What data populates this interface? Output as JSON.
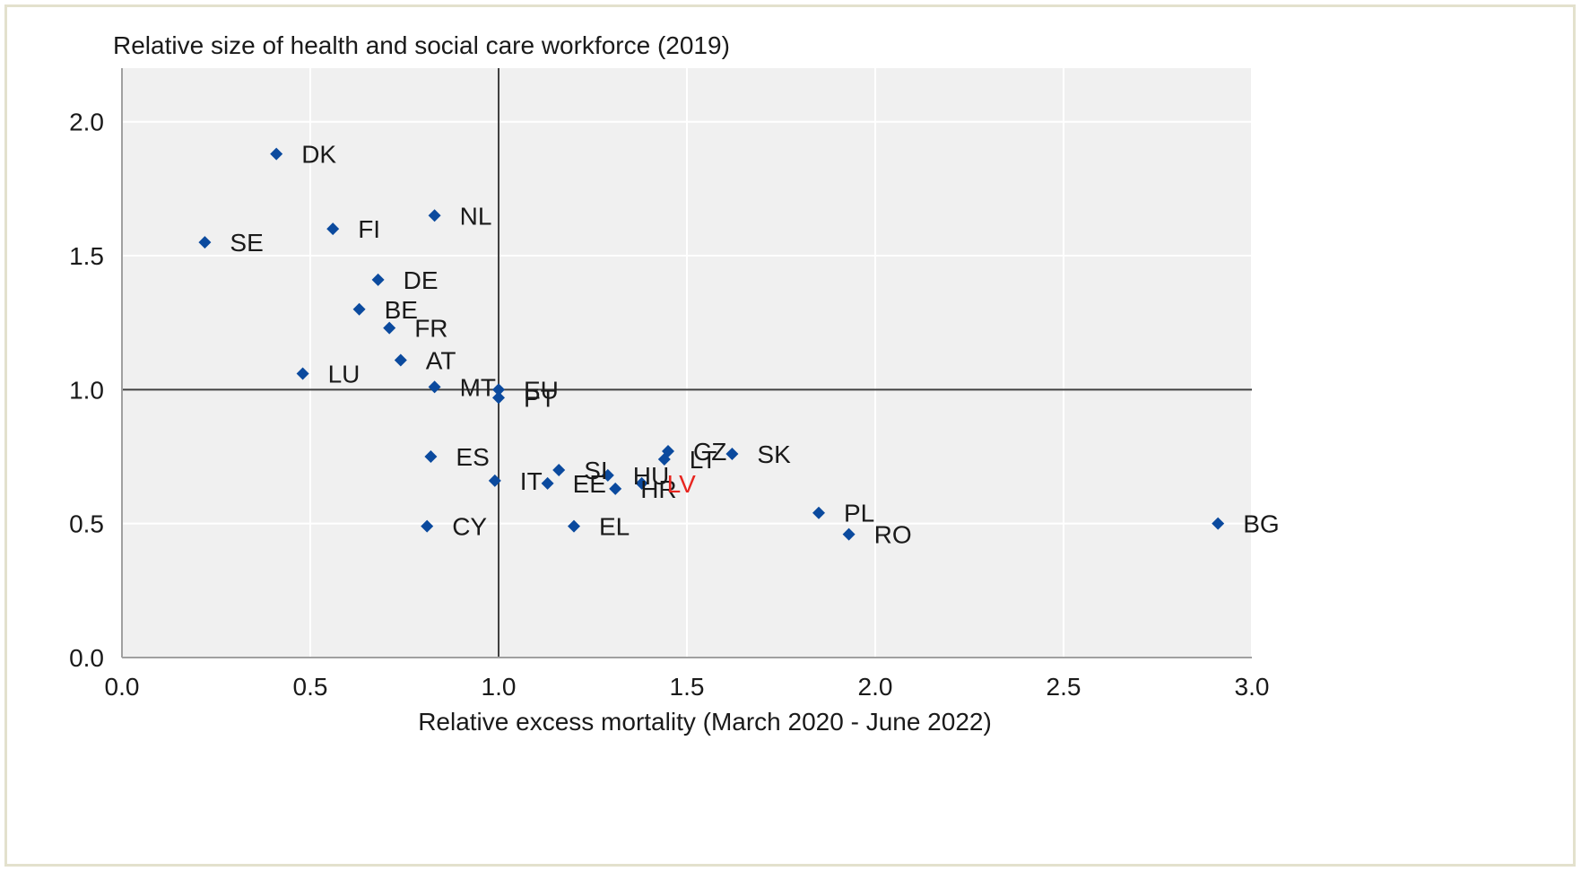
{
  "chart_data": {
    "type": "scatter",
    "ylabel": "Relative size of health and social care workforce (2019)",
    "xlabel": "Relative excess mortality (March 2020 - June 2022)",
    "xlim": [
      0,
      3
    ],
    "ylim": [
      0,
      2.2
    ],
    "xticks": [
      "0.0",
      "0.5",
      "1.0",
      "1.5",
      "2.0",
      "2.5",
      "3.0"
    ],
    "yticks": [
      "0.0",
      "0.5",
      "1.0",
      "1.5",
      "2.0"
    ],
    "grid": true,
    "reference_lines": {
      "x": 1.0,
      "y": 1.0
    },
    "marker_color": "#0b4a9e",
    "highlight_color": "#e8251f",
    "highlight_label": "LV",
    "points": [
      {
        "label": "DK",
        "x": 0.41,
        "y": 1.88
      },
      {
        "label": "NL",
        "x": 0.83,
        "y": 1.65
      },
      {
        "label": "FI",
        "x": 0.56,
        "y": 1.6
      },
      {
        "label": "SE",
        "x": 0.22,
        "y": 1.55
      },
      {
        "label": "DE",
        "x": 0.68,
        "y": 1.41
      },
      {
        "label": "BE",
        "x": 0.63,
        "y": 1.3
      },
      {
        "label": "FR",
        "x": 0.71,
        "y": 1.23
      },
      {
        "label": "AT",
        "x": 0.74,
        "y": 1.11
      },
      {
        "label": "LU",
        "x": 0.48,
        "y": 1.06
      },
      {
        "label": "MT",
        "x": 0.83,
        "y": 1.01
      },
      {
        "label": "EU",
        "x": 1.0,
        "y": 1.0
      },
      {
        "label": "PT",
        "x": 1.0,
        "y": 0.97
      },
      {
        "label": "ES",
        "x": 0.82,
        "y": 0.75
      },
      {
        "label": "IT",
        "x": 0.99,
        "y": 0.66
      },
      {
        "label": "EE",
        "x": 1.13,
        "y": 0.65
      },
      {
        "label": "SI",
        "x": 1.16,
        "y": 0.7
      },
      {
        "label": "HU",
        "x": 1.29,
        "y": 0.68
      },
      {
        "label": "HR",
        "x": 1.31,
        "y": 0.63
      },
      {
        "label": "LV",
        "x": 1.38,
        "y": 0.65
      },
      {
        "label": "LT",
        "x": 1.44,
        "y": 0.74
      },
      {
        "label": "CZ",
        "x": 1.45,
        "y": 0.77
      },
      {
        "label": "SK",
        "x": 1.62,
        "y": 0.76
      },
      {
        "label": "CY",
        "x": 0.81,
        "y": 0.49
      },
      {
        "label": "EL",
        "x": 1.2,
        "y": 0.49
      },
      {
        "label": "PL",
        "x": 1.85,
        "y": 0.54
      },
      {
        "label": "RO",
        "x": 1.93,
        "y": 0.46
      },
      {
        "label": "BG",
        "x": 2.91,
        "y": 0.5
      }
    ]
  }
}
